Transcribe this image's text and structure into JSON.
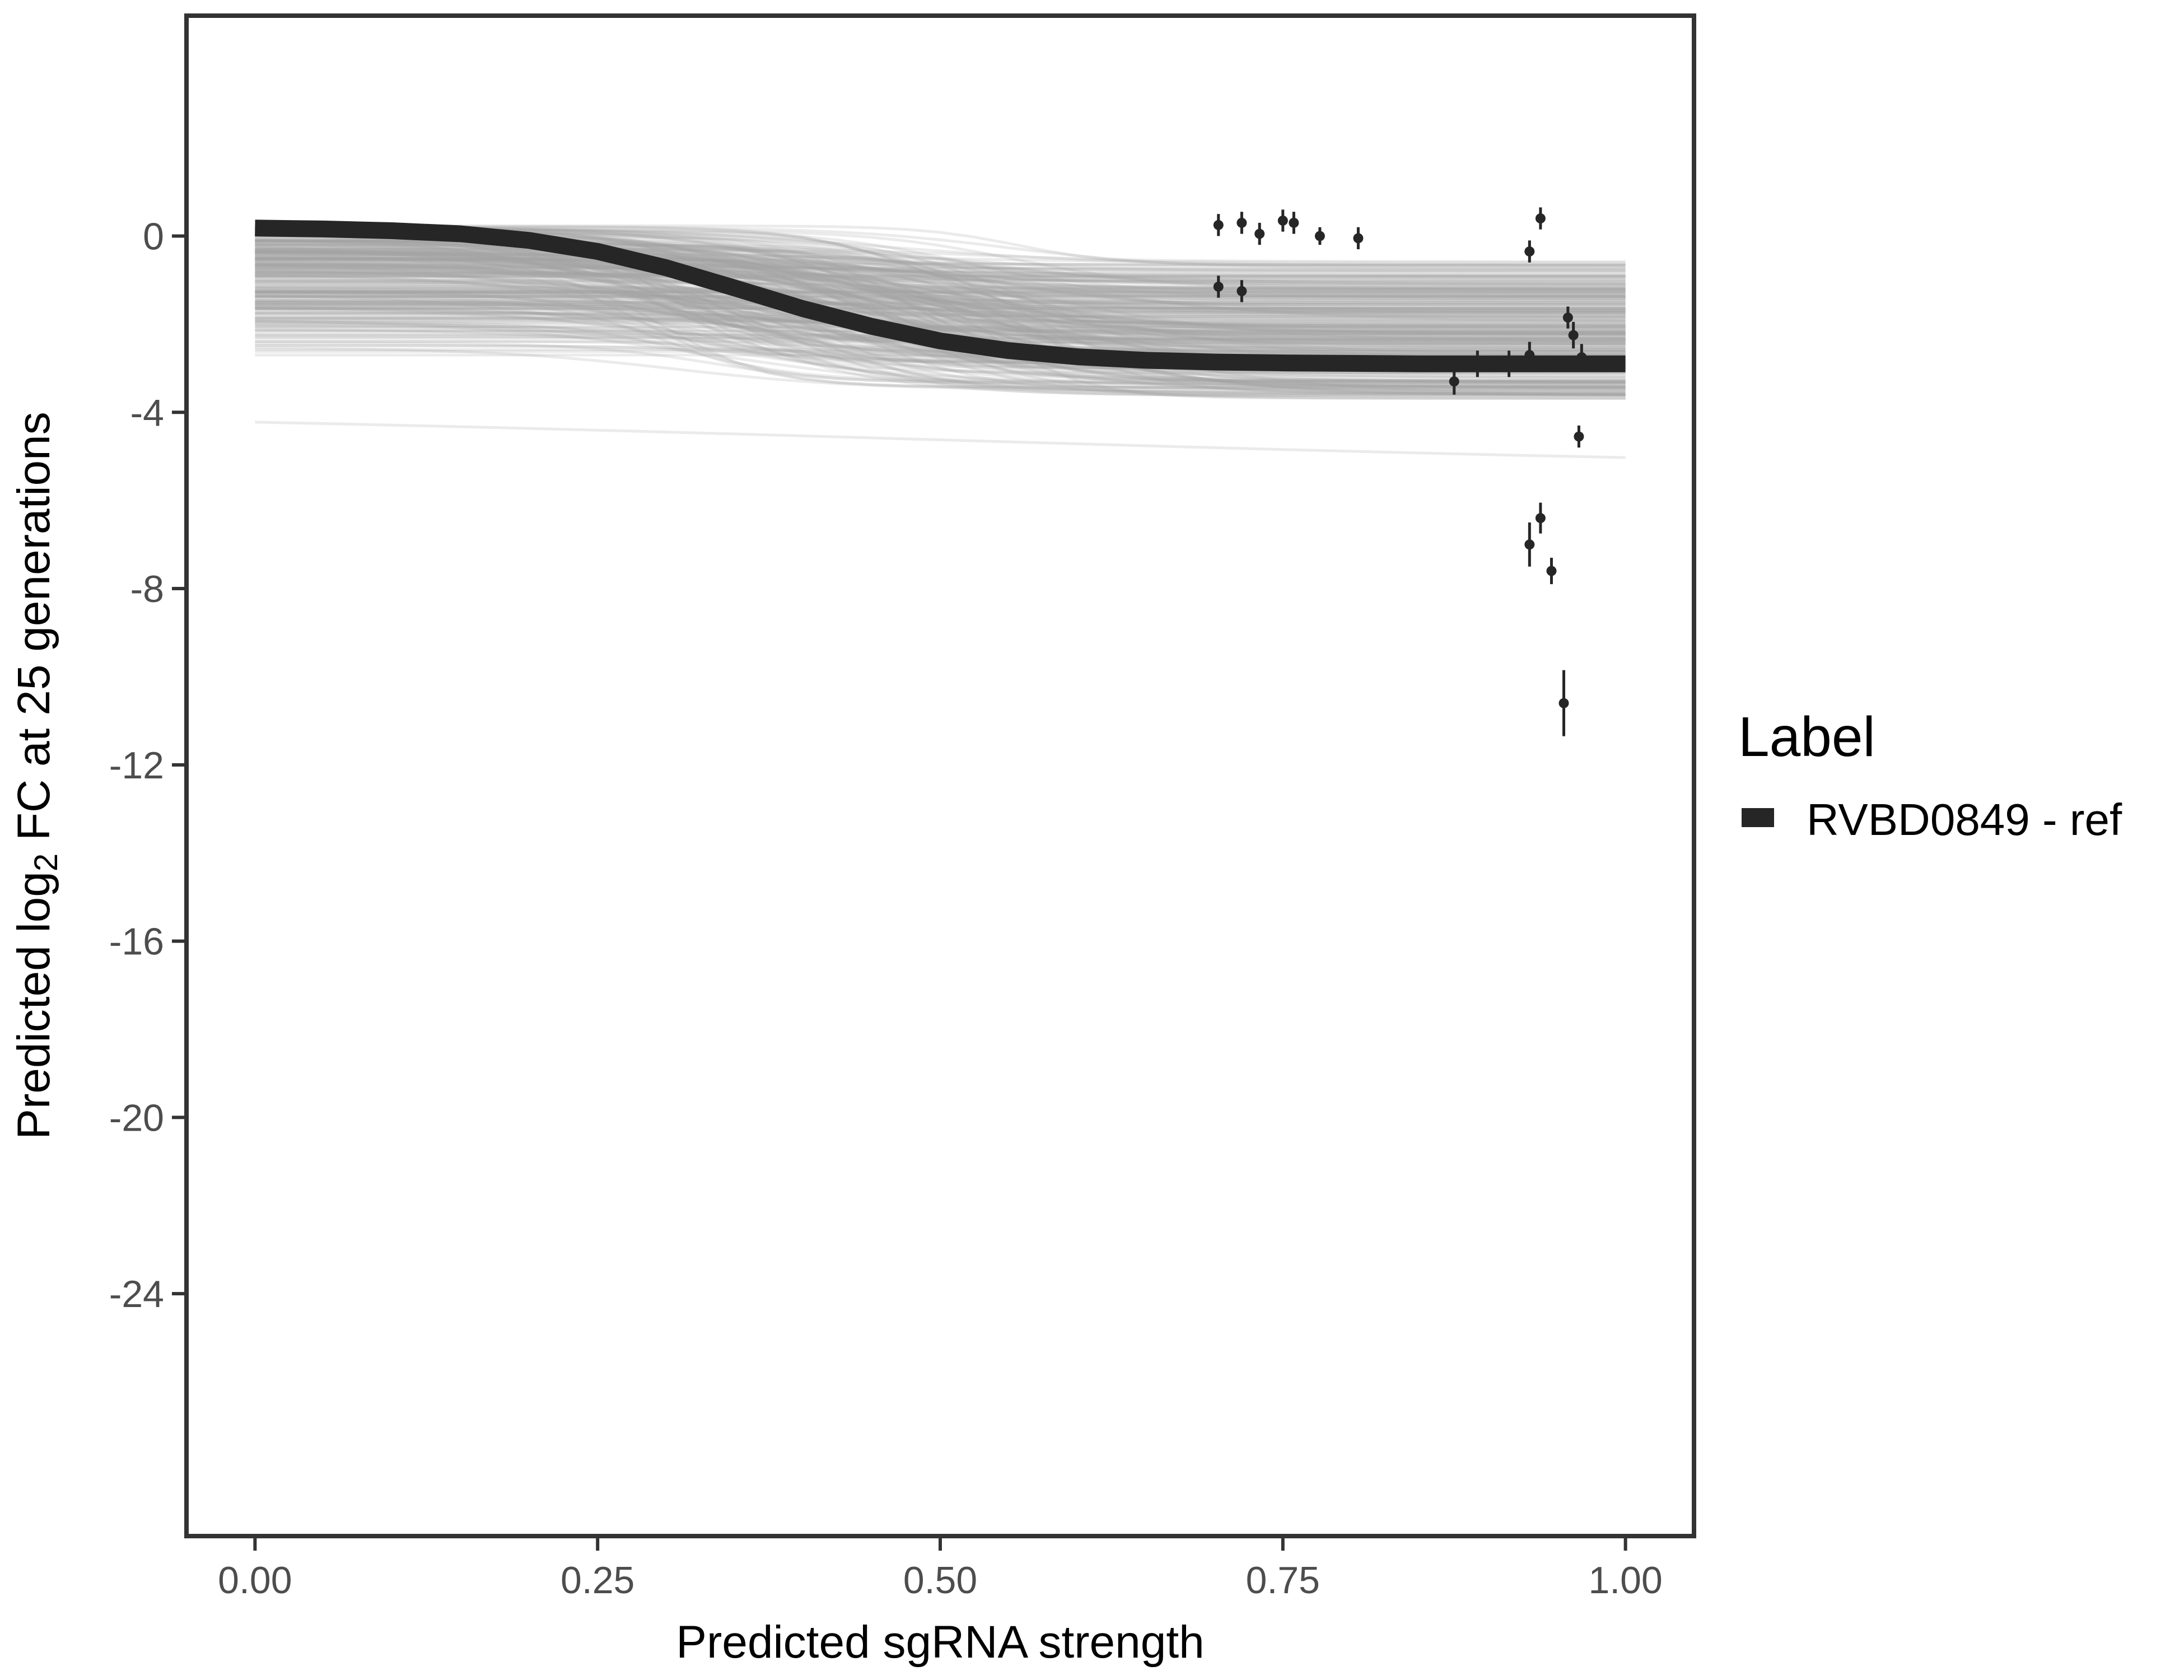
{
  "chart_data": {
    "type": "line",
    "xlabel": "Predicted sgRNA strength",
    "ylabel": {
      "prefix": "Predicted  log",
      "subscript": "2",
      "suffix": " FC at 25 generations"
    },
    "xlim": [
      -0.05,
      1.05
    ],
    "ylim": [
      -29.5,
      5
    ],
    "x_ticks": [
      0,
      0.25,
      0.5,
      0.75,
      1
    ],
    "x_tick_labels": [
      "0.00",
      "0.25",
      "0.50",
      "0.75",
      "1.00"
    ],
    "y_ticks": [
      0,
      -4,
      -8,
      -12,
      -16,
      -20,
      -24
    ],
    "y_tick_labels": [
      "0",
      "-4",
      "-8",
      "-12",
      "-16",
      "-20",
      "-24"
    ],
    "grid": false,
    "legend": {
      "title": "Label",
      "placement": "right",
      "entries": [
        {
          "label": "RVBD0849 - ref",
          "color": "#262626"
        }
      ]
    },
    "series": [
      {
        "name": "RVBD0849 - ref",
        "kind": "fit",
        "color": "#262626",
        "x": [
          0,
          0.05,
          0.1,
          0.15,
          0.2,
          0.25,
          0.3,
          0.35,
          0.4,
          0.45,
          0.5,
          0.55,
          0.6,
          0.65,
          0.7,
          0.75,
          0.8,
          0.85,
          0.9,
          0.95,
          1.0
        ],
        "y": [
          0.18,
          0.16,
          0.12,
          0.05,
          -0.1,
          -0.35,
          -0.72,
          -1.18,
          -1.65,
          -2.05,
          -2.38,
          -2.6,
          -2.74,
          -2.82,
          -2.86,
          -2.88,
          -2.89,
          -2.9,
          -2.9,
          -2.9,
          -2.9
        ]
      }
    ],
    "posterior_draws": {
      "color": "#a6a6a6",
      "count": 300,
      "y_start_range": [
        -2.8,
        0.25
      ],
      "y_end_range": [
        -5.4,
        -0.55
      ],
      "outlier_line": {
        "y_start": -3.9,
        "y_end": -5.35
      }
    },
    "points": {
      "color": "#262626",
      "x": [
        0.703,
        0.72,
        0.733,
        0.75,
        0.758,
        0.777,
        0.805,
        0.703,
        0.72,
        0.875,
        0.892,
        0.915,
        0.93,
        0.938,
        0.93,
        0.938,
        0.946,
        0.958,
        0.962,
        0.966,
        0.968,
        0.93,
        0.955
      ],
      "y": [
        0.25,
        0.3,
        0.05,
        0.35,
        0.3,
        0.0,
        -0.05,
        -1.15,
        -1.25,
        -3.3,
        -2.9,
        -2.9,
        -0.35,
        0.4,
        -2.7,
        -6.4,
        -7.6,
        -1.85,
        -2.25,
        -4.55,
        -2.75,
        -7.0,
        -10.6
      ],
      "err": [
        0.25,
        0.25,
        0.25,
        0.25,
        0.25,
        0.2,
        0.25,
        0.25,
        0.25,
        0.3,
        0.3,
        0.3,
        0.25,
        0.25,
        0.3,
        0.35,
        0.3,
        0.25,
        0.3,
        0.25,
        0.3,
        0.5,
        0.75
      ]
    }
  }
}
